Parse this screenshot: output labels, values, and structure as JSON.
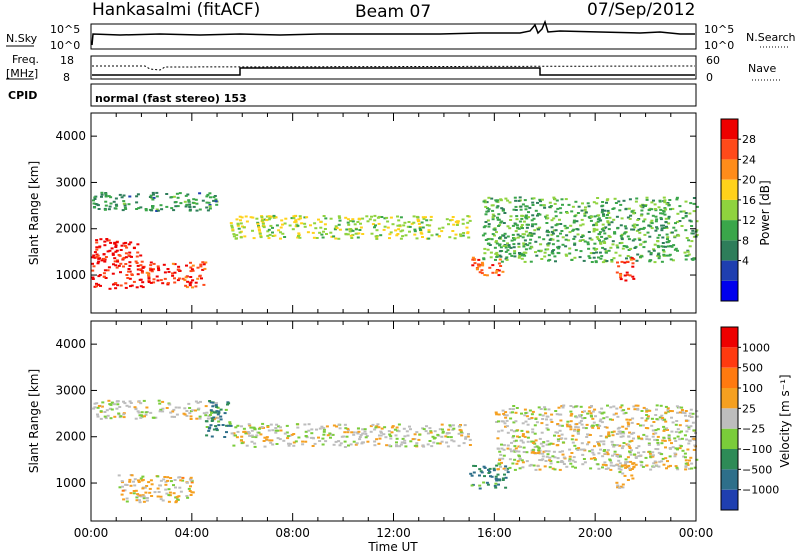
{
  "header": {
    "station": "Hankasalmi (fitACF)",
    "beam": "Beam 07",
    "date": "07/Sep/2012"
  },
  "summary_panels": {
    "nsky": {
      "label": "N.Sky",
      "ticks": [
        "10^5",
        "10^0"
      ]
    },
    "nsearch": {
      "label": "N.Search",
      "ticks": [
        "10^5",
        "10^0"
      ]
    },
    "freq": {
      "label_line1": "Freq.",
      "label_line2": "[MHz]",
      "ticks": [
        "18",
        "8"
      ]
    },
    "nave": {
      "label": "Nave",
      "ticks": [
        "60",
        "0"
      ]
    },
    "cpid": {
      "label": "CPID",
      "value": "normal (fast stereo) 153"
    }
  },
  "axes": {
    "ylabel": "Slant Range [km]",
    "xlabel": "Time UT",
    "y_ticks": [
      "4000",
      "3000",
      "2000",
      "1000"
    ],
    "x_ticks": [
      "00:00",
      "04:00",
      "08:00",
      "12:00",
      "16:00",
      "20:00",
      "00:00"
    ]
  },
  "colorbars": {
    "power": {
      "label": "Power [dB]",
      "ticks": [
        "28",
        "24",
        "20",
        "16",
        "12",
        "8",
        "4"
      ],
      "colors": [
        "#0000ee",
        "#1f3fb0",
        "#2e7d5a",
        "#3aa64a",
        "#8fd33e",
        "#ffd21a",
        "#ff8c1a",
        "#ff4a1a",
        "#ee0000"
      ]
    },
    "velocity": {
      "label": "Velocity [m s⁻¹]",
      "ticks": [
        "1000",
        "500",
        "100",
        "25",
        "−25",
        "−100",
        "−500",
        "−1000"
      ],
      "colors": [
        "#1f3fb0",
        "#2e6f8a",
        "#2e8b57",
        "#7acc3a",
        "#bdbdbd",
        "#f5a020",
        "#ff7a10",
        "#ff3a10",
        "#ee0000"
      ]
    }
  },
  "chart_data": [
    {
      "type": "heatmap",
      "title": "Power",
      "x_range_hours": [
        0,
        24
      ],
      "y_range_km": [
        180,
        4500
      ],
      "z_unit": "dB",
      "z_range": [
        0,
        30
      ],
      "features": [
        {
          "t_start": 0.0,
          "t_end": 2.0,
          "range_low_km": 700,
          "range_high_km": 1800,
          "value": 28
        },
        {
          "t_start": 2.0,
          "t_end": 4.5,
          "range_low_km": 750,
          "range_high_km": 1300,
          "value": 26
        },
        {
          "t_start": 0.0,
          "t_end": 5.0,
          "range_low_km": 2400,
          "range_high_km": 2800,
          "value": 10
        },
        {
          "t_start": 5.5,
          "t_end": 15.0,
          "range_low_km": 1800,
          "range_high_km": 2300,
          "value": 16
        },
        {
          "t_start": 15.5,
          "t_end": 24.0,
          "range_low_km": 1300,
          "range_high_km": 2700,
          "value": 12
        },
        {
          "t_start": 15.0,
          "t_end": 16.3,
          "range_low_km": 1000,
          "range_high_km": 1400,
          "value": 24
        },
        {
          "t_start": 20.8,
          "t_end": 21.5,
          "range_low_km": 900,
          "range_high_km": 1400,
          "value": 26
        }
      ]
    },
    {
      "type": "heatmap",
      "title": "Velocity",
      "x_range_hours": [
        0,
        24
      ],
      "y_range_km": [
        180,
        4500
      ],
      "z_unit": "m s^-1",
      "z_range": [
        -1000,
        1000
      ],
      "features": [
        {
          "t_start": 0.0,
          "t_end": 5.0,
          "range_low_km": 2400,
          "range_high_km": 2800,
          "value": 0
        },
        {
          "t_start": 1.0,
          "t_end": 4.0,
          "range_low_km": 600,
          "range_high_km": 1200,
          "value": 100
        },
        {
          "t_start": 4.5,
          "t_end": 5.5,
          "range_low_km": 2000,
          "range_high_km": 2800,
          "value": -500
        },
        {
          "t_start": 5.5,
          "t_end": 15.0,
          "range_low_km": 1800,
          "range_high_km": 2300,
          "value": 0
        },
        {
          "t_start": 15.0,
          "t_end": 16.5,
          "range_low_km": 900,
          "range_high_km": 1400,
          "value": -500
        },
        {
          "t_start": 16.0,
          "t_end": 24.0,
          "range_low_km": 1300,
          "range_high_km": 2700,
          "value": 0
        },
        {
          "t_start": 20.8,
          "t_end": 21.5,
          "range_low_km": 900,
          "range_high_km": 1500,
          "value": 100
        }
      ]
    }
  ]
}
